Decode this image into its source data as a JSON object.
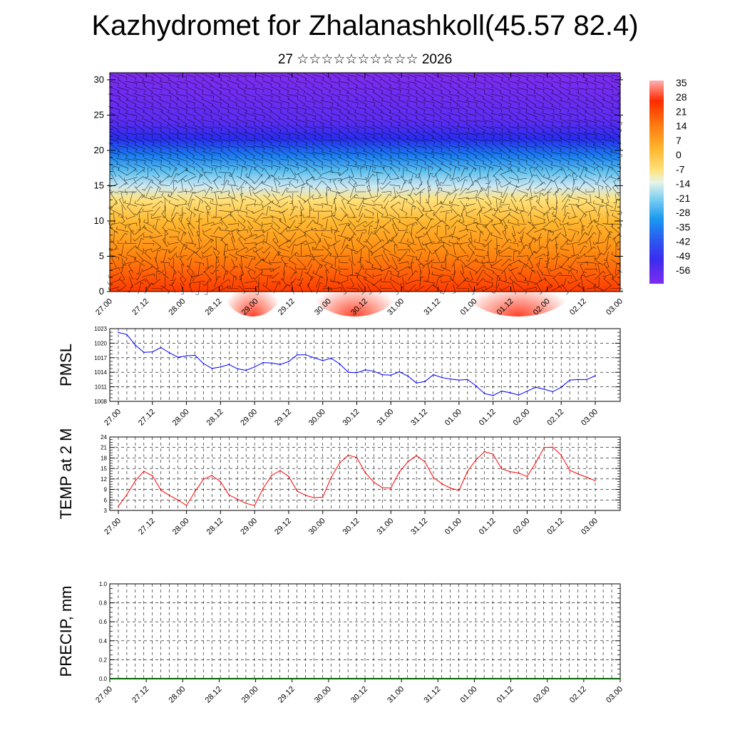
{
  "header": {
    "title": "Kazhydromet for Zhalanashkoll(45.57 82.4)",
    "subtitle": "27 ☆☆☆☆☆☆☆☆☆☆ 2026"
  },
  "chart_data": [
    {
      "type": "heatmap",
      "name": "vertical-section",
      "x_tick_labels": [
        "27.00",
        "27.12",
        "28.00",
        "28.12",
        "29.00",
        "29.12",
        "30.00",
        "30.12",
        "31.00",
        "31.12",
        "01.00",
        "01.12",
        "02.00",
        "02.12",
        "03.00"
      ],
      "y_ticks": [
        0,
        5,
        10,
        15,
        20,
        25,
        30
      ],
      "ylim": [
        0,
        31
      ],
      "colorbar_labels": [
        "35",
        "28",
        "21",
        "14",
        "7",
        "0",
        "-7",
        "-14",
        "-21",
        "-28",
        "-35",
        "-42",
        "-49",
        "-56"
      ],
      "colors": {
        "warm": "#ff3c00",
        "mid": "#ffe27a",
        "cool": "#22a8f0",
        "cold": "#2b25f0",
        "top": "#7f2cf0"
      },
      "overlay": "wind barbs"
    },
    {
      "type": "line",
      "name": "pmsl",
      "ylabel": "PMSL",
      "y_ticks": [
        1008,
        1011,
        1014,
        1017,
        1020,
        1023
      ],
      "ylim": [
        1008,
        1023
      ],
      "x_tick_labels": [
        "27.00",
        "27.12",
        "28.00",
        "28.12",
        "29.00",
        "29.12",
        "30.00",
        "30.12",
        "31.00",
        "31.12",
        "01.00",
        "01.12",
        "02.00",
        "02.12",
        "03.00"
      ],
      "color": "#0000ff",
      "values": [
        1022.2,
        1021.8,
        1019.6,
        1018.1,
        1018.2,
        1019.1,
        1018.0,
        1017.1,
        1017.4,
        1017.5,
        1015.8,
        1014.8,
        1015.1,
        1015.6,
        1014.7,
        1014.4,
        1015.1,
        1016.0,
        1015.9,
        1015.6,
        1016.2,
        1017.6,
        1017.6,
        1017.0,
        1016.4,
        1016.9,
        1015.7,
        1014.0,
        1013.9,
        1014.5,
        1014.2,
        1013.5,
        1013.4,
        1014.1,
        1013.2,
        1011.8,
        1012.1,
        1013.5,
        1012.9,
        1012.6,
        1012.4,
        1012.5,
        1011.2,
        1009.6,
        1009.2,
        1010.1,
        1009.8,
        1009.3,
        1010.1,
        1010.9,
        1010.5,
        1010.0,
        1010.9,
        1012.4,
        1012.5,
        1012.5,
        1013.3
      ]
    },
    {
      "type": "line",
      "name": "temp-2m",
      "ylabel": "TEMP at 2 M",
      "y_ticks": [
        3,
        6,
        9,
        12,
        15,
        18,
        21,
        24
      ],
      "ylim": [
        3,
        24
      ],
      "x_tick_labels": [
        "27.00",
        "27.12",
        "28.00",
        "28.12",
        "29.00",
        "29.12",
        "30.00",
        "30.12",
        "31.00",
        "31.12",
        "01.00",
        "01.12",
        "02.00",
        "02.12",
        "03.00"
      ],
      "color": "#ff0000",
      "values": [
        4.2,
        7.5,
        11.5,
        14.2,
        12.9,
        8.8,
        7.3,
        6.0,
        4.4,
        8.4,
        11.9,
        13.0,
        11.2,
        7.4,
        6.2,
        5.0,
        4.4,
        9.3,
        13.0,
        14.4,
        12.7,
        8.5,
        7.3,
        6.6,
        6.8,
        12.5,
        16.6,
        18.8,
        18.1,
        13.8,
        11.1,
        9.5,
        9.4,
        14.0,
        16.9,
        18.7,
        16.9,
        12.4,
        10.6,
        9.4,
        8.7,
        14.2,
        17.5,
        19.8,
        19.1,
        14.9,
        14.1,
        13.7,
        12.7,
        16.6,
        21.0,
        21.1,
        18.8,
        14.5,
        13.4,
        12.5,
        11.5
      ]
    },
    {
      "type": "line",
      "name": "precip",
      "ylabel": "PRECIP, mm",
      "y_ticks": [
        "0.0",
        "0.2",
        "0.4",
        "0.6",
        "0.8",
        "1.0"
      ],
      "ylim": [
        0,
        1
      ],
      "x_tick_labels": [
        "27.00",
        "27.12",
        "28.00",
        "28.12",
        "29.00",
        "29.12",
        "30.00",
        "30.12",
        "31.00",
        "31.12",
        "01.00",
        "01.12",
        "02.00",
        "02.12",
        "03.00"
      ],
      "color": "#006400",
      "values": [
        0,
        0,
        0,
        0,
        0,
        0,
        0,
        0,
        0,
        0,
        0,
        0,
        0,
        0,
        0,
        0,
        0,
        0,
        0,
        0,
        0,
        0,
        0,
        0,
        0,
        0,
        0,
        0,
        0,
        0,
        0,
        0,
        0,
        0,
        0,
        0,
        0,
        0,
        0,
        0,
        0,
        0,
        0,
        0,
        0,
        0,
        0,
        0,
        0,
        0,
        0,
        0,
        0,
        0,
        0,
        0,
        0,
        0,
        0,
        0,
        0
      ]
    }
  ]
}
